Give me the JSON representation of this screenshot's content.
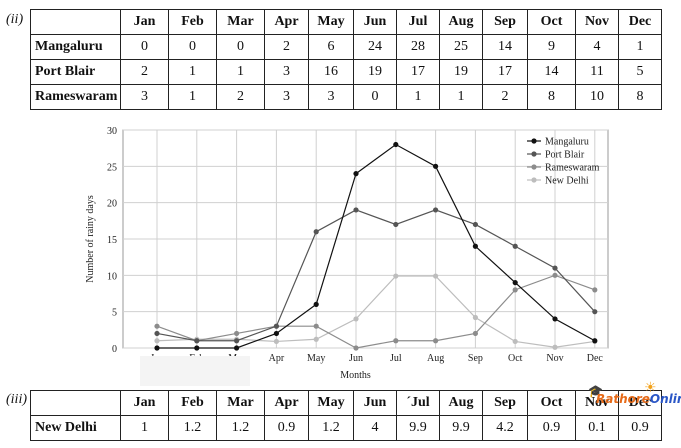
{
  "labels": {
    "part2": "(ii)",
    "part3": "(iii)"
  },
  "months": [
    "Jan",
    "Feb",
    "Mar",
    "Apr",
    "May",
    "Jun",
    "Jul",
    "Aug",
    "Sep",
    "Oct",
    "Nov",
    "Dec"
  ],
  "table_top": {
    "rows": [
      {
        "name": "Mangaluru",
        "values": [
          "0",
          "0",
          "0",
          "2",
          "6",
          "24",
          "28",
          "25",
          "14",
          "9",
          "4",
          "1"
        ]
      },
      {
        "name": "Port Blair",
        "values": [
          "2",
          "1",
          "1",
          "3",
          "16",
          "19",
          "17",
          "19",
          "17",
          "14",
          "11",
          "5"
        ]
      },
      {
        "name": "Rameswaram",
        "values": [
          "3",
          "1",
          "2",
          "3",
          "3",
          "0",
          "1",
          "1",
          "2",
          "8",
          "10",
          "8"
        ]
      }
    ]
  },
  "table_bottom": {
    "header_months": [
      "Jan",
      "Feb",
      "Mar",
      "Apr",
      "May",
      "Jun",
      "´Jul",
      "Aug",
      "Sep",
      "Oct",
      "Nov",
      "Dec"
    ],
    "rows": [
      {
        "name": "New Delhi",
        "values": [
          "1",
          "1.2",
          "1.2",
          "0.9",
          "1.2",
          "4",
          "9.9",
          "9.9",
          "4.2",
          "0.9",
          "0.1",
          "0.9"
        ]
      }
    ]
  },
  "logo": {
    "text_a": "Rathore",
    "text_b": "Online"
  },
  "chart_data": {
    "type": "line",
    "categories": [
      "Jan",
      "Feb",
      "Mar",
      "Apr",
      "May",
      "Jun",
      "Jul",
      "Aug",
      "Sep",
      "Oct",
      "Nov",
      "Dec"
    ],
    "xlabel": "Months",
    "ylabel": "Number of rainy days",
    "ylim": [
      0,
      30
    ],
    "yticks": [
      0,
      5,
      10,
      15,
      20,
      25,
      30
    ],
    "grid": true,
    "legend_position": "top-right",
    "series": [
      {
        "name": "Mangaluru",
        "color": "#111111",
        "values": [
          0,
          0,
          0,
          2,
          6,
          24,
          28,
          25,
          14,
          9,
          4,
          1
        ]
      },
      {
        "name": "Port Blair",
        "color": "#555555",
        "values": [
          2,
          1,
          1,
          3,
          16,
          19,
          17,
          19,
          17,
          14,
          11,
          5
        ]
      },
      {
        "name": "Rameswaram",
        "color": "#8c8c8c",
        "values": [
          3,
          1,
          2,
          3,
          3,
          0,
          1,
          1,
          2,
          8,
          10,
          8
        ]
      },
      {
        "name": "New Delhi",
        "color": "#bdbdbd",
        "values": [
          1,
          1.2,
          1.2,
          0.9,
          1.2,
          4,
          9.9,
          9.9,
          4.2,
          0.9,
          0.1,
          0.9
        ]
      }
    ]
  }
}
